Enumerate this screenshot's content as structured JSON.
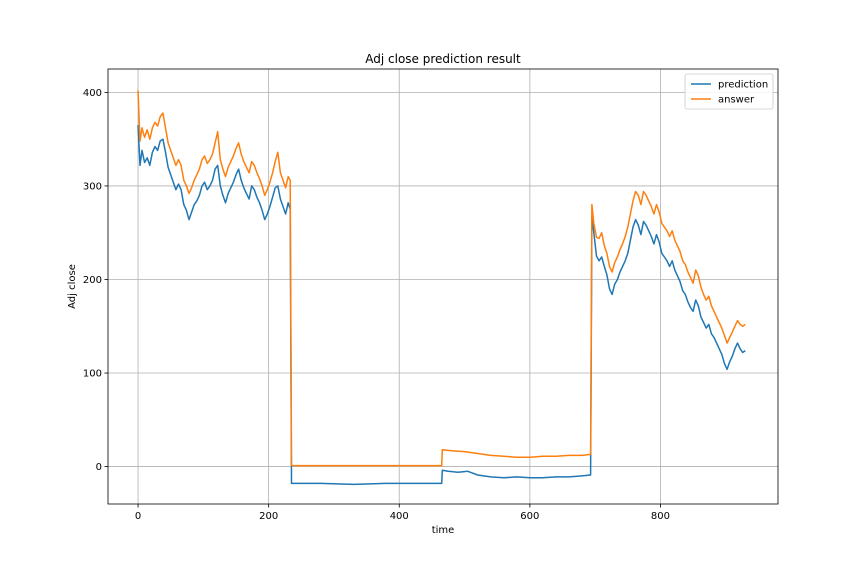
{
  "chart_data": {
    "type": "line",
    "title": "Adj close prediction result",
    "xlabel": "time",
    "ylabel": "Adj close",
    "xlim": [
      -46,
      980
    ],
    "ylim": [
      -40,
      425
    ],
    "xticks": [
      0,
      200,
      400,
      600,
      800
    ],
    "yticks": [
      0,
      100,
      200,
      300,
      400
    ],
    "grid": true,
    "legend": "top-right",
    "series": [
      {
        "name": "prediction",
        "color": "#1f77b4",
        "points": [
          [
            0,
            365
          ],
          [
            3,
            322
          ],
          [
            6,
            338
          ],
          [
            10,
            325
          ],
          [
            14,
            330
          ],
          [
            18,
            322
          ],
          [
            22,
            336
          ],
          [
            26,
            342
          ],
          [
            30,
            338
          ],
          [
            34,
            348
          ],
          [
            38,
            350
          ],
          [
            42,
            336
          ],
          [
            46,
            320
          ],
          [
            50,
            312
          ],
          [
            54,
            304
          ],
          [
            58,
            296
          ],
          [
            62,
            302
          ],
          [
            66,
            296
          ],
          [
            70,
            280
          ],
          [
            74,
            274
          ],
          [
            78,
            264
          ],
          [
            82,
            272
          ],
          [
            86,
            280
          ],
          [
            90,
            284
          ],
          [
            94,
            290
          ],
          [
            98,
            300
          ],
          [
            102,
            304
          ],
          [
            106,
            296
          ],
          [
            110,
            300
          ],
          [
            114,
            306
          ],
          [
            118,
            318
          ],
          [
            122,
            322
          ],
          [
            126,
            300
          ],
          [
            130,
            290
          ],
          [
            134,
            282
          ],
          [
            138,
            292
          ],
          [
            142,
            298
          ],
          [
            146,
            304
          ],
          [
            150,
            312
          ],
          [
            154,
            318
          ],
          [
            158,
            306
          ],
          [
            162,
            298
          ],
          [
            166,
            292
          ],
          [
            170,
            286
          ],
          [
            174,
            300
          ],
          [
            178,
            296
          ],
          [
            182,
            288
          ],
          [
            186,
            282
          ],
          [
            190,
            274
          ],
          [
            194,
            264
          ],
          [
            198,
            270
          ],
          [
            202,
            278
          ],
          [
            206,
            288
          ],
          [
            210,
            298
          ],
          [
            214,
            300
          ],
          [
            218,
            286
          ],
          [
            222,
            278
          ],
          [
            226,
            270
          ],
          [
            230,
            282
          ],
          [
            233,
            275
          ],
          [
            235,
            -18
          ],
          [
            280,
            -18
          ],
          [
            330,
            -19
          ],
          [
            380,
            -18
          ],
          [
            420,
            -18
          ],
          [
            465,
            -18
          ],
          [
            466,
            -4
          ],
          [
            475,
            -5
          ],
          [
            490,
            -6
          ],
          [
            505,
            -5
          ],
          [
            520,
            -9
          ],
          [
            540,
            -11
          ],
          [
            560,
            -12
          ],
          [
            580,
            -11
          ],
          [
            600,
            -12
          ],
          [
            620,
            -12
          ],
          [
            640,
            -11
          ],
          [
            660,
            -11
          ],
          [
            680,
            -10
          ],
          [
            693,
            -9
          ],
          [
            695,
            268
          ],
          [
            698,
            250
          ],
          [
            702,
            225
          ],
          [
            706,
            220
          ],
          [
            710,
            224
          ],
          [
            714,
            214
          ],
          [
            718,
            205
          ],
          [
            722,
            190
          ],
          [
            726,
            184
          ],
          [
            730,
            195
          ],
          [
            734,
            200
          ],
          [
            738,
            208
          ],
          [
            742,
            214
          ],
          [
            746,
            220
          ],
          [
            750,
            228
          ],
          [
            754,
            242
          ],
          [
            758,
            256
          ],
          [
            762,
            264
          ],
          [
            766,
            258
          ],
          [
            770,
            248
          ],
          [
            774,
            262
          ],
          [
            778,
            258
          ],
          [
            782,
            252
          ],
          [
            786,
            246
          ],
          [
            790,
            238
          ],
          [
            794,
            248
          ],
          [
            798,
            240
          ],
          [
            802,
            228
          ],
          [
            806,
            224
          ],
          [
            810,
            220
          ],
          [
            814,
            214
          ],
          [
            818,
            220
          ],
          [
            822,
            210
          ],
          [
            826,
            204
          ],
          [
            830,
            198
          ],
          [
            834,
            188
          ],
          [
            838,
            184
          ],
          [
            842,
            176
          ],
          [
            846,
            170
          ],
          [
            850,
            166
          ],
          [
            854,
            178
          ],
          [
            858,
            172
          ],
          [
            862,
            160
          ],
          [
            866,
            154
          ],
          [
            870,
            148
          ],
          [
            874,
            152
          ],
          [
            878,
            142
          ],
          [
            882,
            138
          ],
          [
            886,
            132
          ],
          [
            890,
            126
          ],
          [
            894,
            120
          ],
          [
            898,
            110
          ],
          [
            902,
            104
          ],
          [
            906,
            112
          ],
          [
            910,
            118
          ],
          [
            914,
            126
          ],
          [
            918,
            132
          ],
          [
            922,
            126
          ],
          [
            926,
            122
          ],
          [
            930,
            124
          ]
        ]
      },
      {
        "name": "answer",
        "color": "#ff7f0e",
        "points": [
          [
            0,
            402
          ],
          [
            3,
            348
          ],
          [
            6,
            362
          ],
          [
            10,
            352
          ],
          [
            14,
            360
          ],
          [
            18,
            350
          ],
          [
            22,
            362
          ],
          [
            26,
            368
          ],
          [
            30,
            364
          ],
          [
            34,
            374
          ],
          [
            38,
            378
          ],
          [
            42,
            362
          ],
          [
            46,
            346
          ],
          [
            50,
            338
          ],
          [
            54,
            330
          ],
          [
            58,
            322
          ],
          [
            62,
            328
          ],
          [
            66,
            322
          ],
          [
            70,
            306
          ],
          [
            74,
            300
          ],
          [
            78,
            292
          ],
          [
            82,
            298
          ],
          [
            86,
            306
          ],
          [
            90,
            312
          ],
          [
            94,
            318
          ],
          [
            98,
            328
          ],
          [
            102,
            332
          ],
          [
            106,
            324
          ],
          [
            110,
            328
          ],
          [
            114,
            334
          ],
          [
            118,
            346
          ],
          [
            122,
            358
          ],
          [
            126,
            328
          ],
          [
            130,
            318
          ],
          [
            134,
            310
          ],
          [
            138,
            320
          ],
          [
            142,
            326
          ],
          [
            146,
            332
          ],
          [
            150,
            340
          ],
          [
            154,
            346
          ],
          [
            158,
            334
          ],
          [
            162,
            326
          ],
          [
            166,
            320
          ],
          [
            170,
            314
          ],
          [
            174,
            326
          ],
          [
            178,
            322
          ],
          [
            182,
            314
          ],
          [
            186,
            308
          ],
          [
            190,
            300
          ],
          [
            194,
            290
          ],
          [
            198,
            296
          ],
          [
            202,
            304
          ],
          [
            206,
            314
          ],
          [
            210,
            326
          ],
          [
            214,
            336
          ],
          [
            218,
            314
          ],
          [
            222,
            306
          ],
          [
            226,
            298
          ],
          [
            230,
            310
          ],
          [
            233,
            306
          ],
          [
            235,
            1
          ],
          [
            300,
            1
          ],
          [
            380,
            1
          ],
          [
            465,
            1
          ],
          [
            466,
            18
          ],
          [
            480,
            17
          ],
          [
            500,
            16
          ],
          [
            520,
            14
          ],
          [
            540,
            12
          ],
          [
            560,
            11
          ],
          [
            580,
            10
          ],
          [
            600,
            10
          ],
          [
            620,
            11
          ],
          [
            640,
            11
          ],
          [
            660,
            12
          ],
          [
            680,
            12
          ],
          [
            693,
            13
          ],
          [
            695,
            280
          ],
          [
            698,
            260
          ],
          [
            702,
            245
          ],
          [
            706,
            244
          ],
          [
            710,
            250
          ],
          [
            714,
            236
          ],
          [
            718,
            228
          ],
          [
            722,
            214
          ],
          [
            726,
            208
          ],
          [
            730,
            218
          ],
          [
            734,
            224
          ],
          [
            738,
            232
          ],
          [
            742,
            238
          ],
          [
            746,
            246
          ],
          [
            750,
            256
          ],
          [
            754,
            270
          ],
          [
            758,
            284
          ],
          [
            762,
            294
          ],
          [
            766,
            290
          ],
          [
            770,
            280
          ],
          [
            774,
            294
          ],
          [
            778,
            290
          ],
          [
            782,
            284
          ],
          [
            786,
            278
          ],
          [
            790,
            270
          ],
          [
            794,
            280
          ],
          [
            798,
            272
          ],
          [
            802,
            260
          ],
          [
            806,
            256
          ],
          [
            810,
            252
          ],
          [
            814,
            246
          ],
          [
            818,
            252
          ],
          [
            822,
            242
          ],
          [
            826,
            236
          ],
          [
            830,
            230
          ],
          [
            834,
            220
          ],
          [
            838,
            216
          ],
          [
            842,
            208
          ],
          [
            846,
            202
          ],
          [
            850,
            196
          ],
          [
            854,
            210
          ],
          [
            858,
            204
          ],
          [
            862,
            192
          ],
          [
            866,
            184
          ],
          [
            870,
            178
          ],
          [
            874,
            182
          ],
          [
            878,
            172
          ],
          [
            882,
            166
          ],
          [
            886,
            160
          ],
          [
            890,
            154
          ],
          [
            894,
            148
          ],
          [
            898,
            140
          ],
          [
            902,
            132
          ],
          [
            906,
            138
          ],
          [
            910,
            144
          ],
          [
            914,
            150
          ],
          [
            918,
            156
          ],
          [
            922,
            152
          ],
          [
            926,
            150
          ],
          [
            930,
            152
          ]
        ]
      }
    ]
  }
}
